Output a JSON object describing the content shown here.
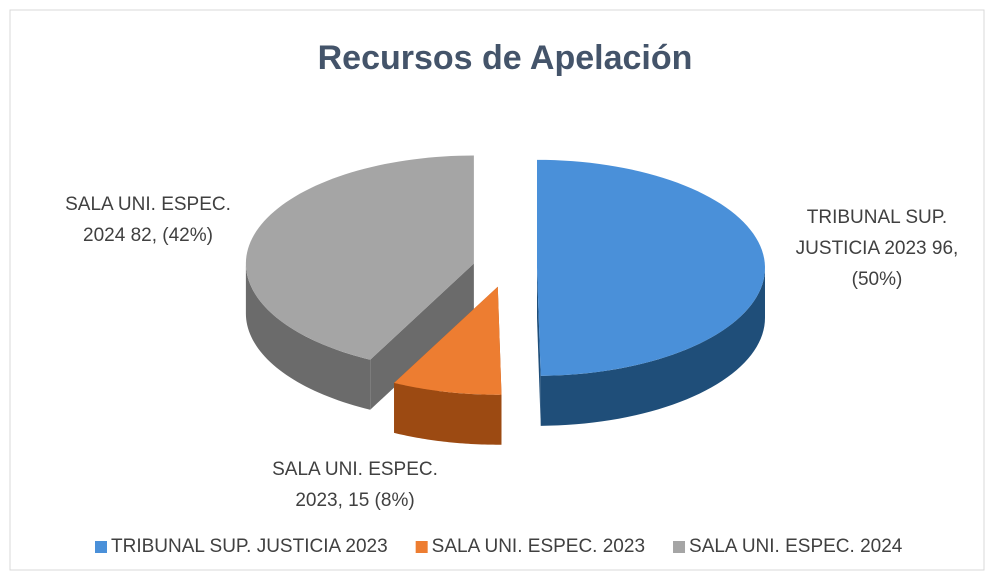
{
  "chart_data": {
    "type": "pie",
    "title": "Recursos de Apelación",
    "categories": [
      "TRIBUNAL SUP. JUSTICIA 2023",
      "SALA UNI. ESPEC. 2023",
      "SALA UNI. ESPEC. 2024"
    ],
    "values": [
      96,
      15,
      82
    ],
    "value_labels": [
      [
        "TRIBUNAL SUP.",
        "JUSTICIA 2023 96,",
        "(50%)"
      ],
      [
        "SALA UNI. ESPEC.",
        "2023, 15 (8%)"
      ],
      [
        "SALA UNI. ESPEC.",
        "2024 82, (42%)"
      ]
    ],
    "colors": [
      "#4a90d9",
      "#ed7d31",
      "#a5a5a5"
    ],
    "side_colors": [
      "#1f4e79",
      "#9c4a12",
      "#6b6b6b"
    ],
    "legend": "bottom"
  }
}
